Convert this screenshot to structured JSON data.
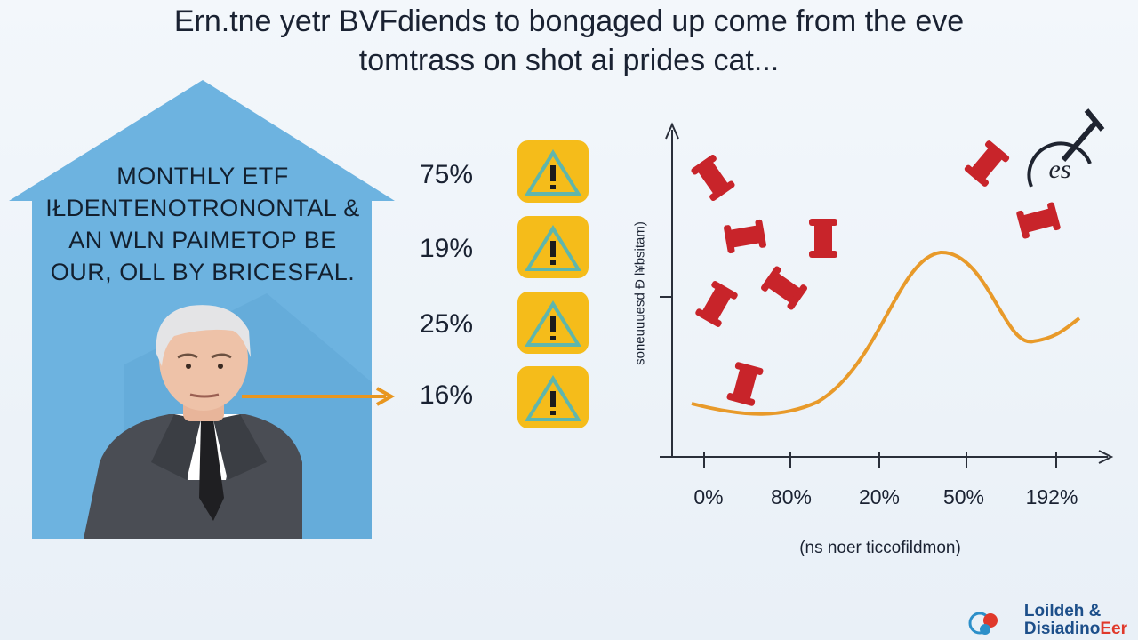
{
  "title": {
    "line1": "Ern.tne yetr BVFdiends to bongaged up come from the eve",
    "line2": "tomtrass on shot ai prides cat..."
  },
  "house": {
    "lines": [
      "MONTHLY ETF",
      "IŁDENTENOTRONONTAL &",
      "AN WLN PAIMETOP BE",
      "OUR, OLL BY BRICESFAL."
    ]
  },
  "alerts": [
    {
      "percent": "75%",
      "icon": "warning-triangle-icon"
    },
    {
      "percent": "19%",
      "icon": "warning-triangle-icon"
    },
    {
      "percent": "25%",
      "icon": "warning-triangle-icon"
    },
    {
      "percent": "16%",
      "icon": "warning-triangle-icon"
    }
  ],
  "chart": {
    "ylabel": "soneuuuesd Ð l¥bsitam)",
    "xlabel": "(ns noer ticcofildmon)",
    "xticks": [
      "0%",
      "80%",
      "20%",
      "50%",
      "192%"
    ],
    "corner_icon_text": "es"
  },
  "badge": {
    "line1": "Loildeh &",
    "line2_main": "Disiadino",
    "line2_accent": "Eer"
  },
  "colors": {
    "house_blue": "#6db3e0",
    "warning_yellow": "#f5bc1a",
    "warning_teal": "#5fb6ac",
    "curve_orange": "#e89a2a",
    "spool_red": "#c8242a",
    "arrow_orange": "#e8961f"
  }
}
